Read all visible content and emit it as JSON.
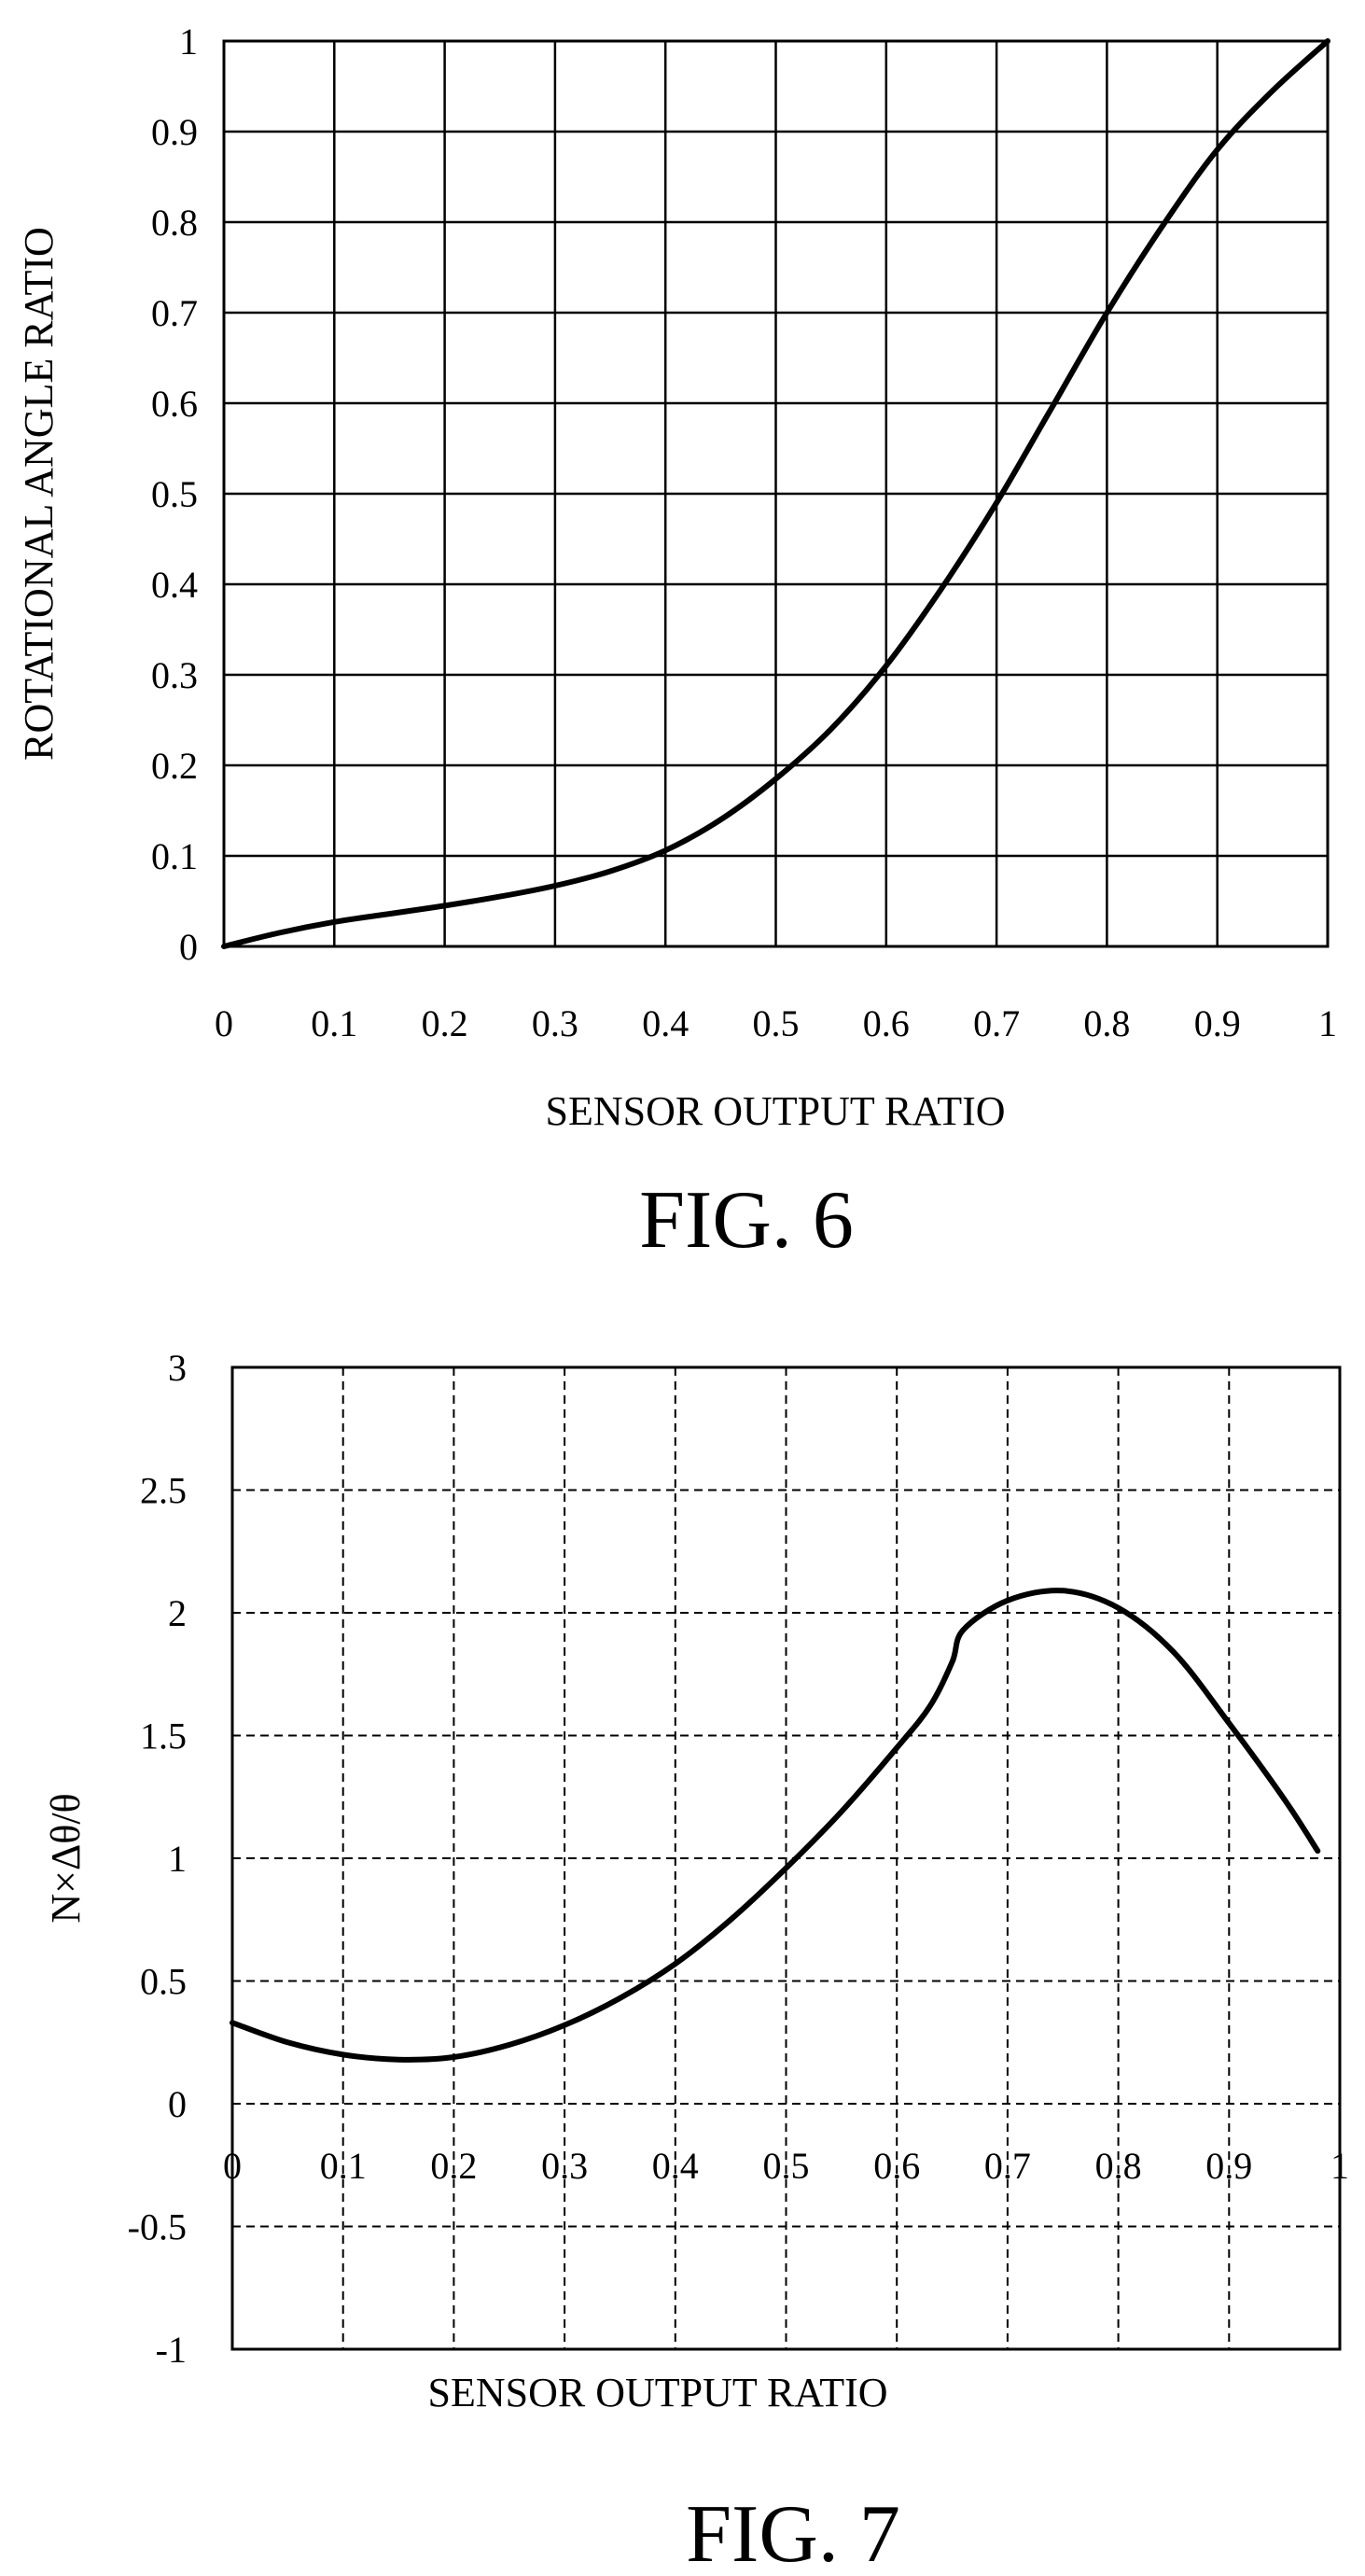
{
  "chart_data": [
    {
      "type": "line",
      "caption": "FIG. 6",
      "xlabel": "SENSOR OUTPUT RATIO",
      "ylabel": "ROTATIONAL ANGLE RATIO",
      "xlim": [
        0,
        1
      ],
      "ylim": [
        0,
        1
      ],
      "grid": true,
      "grid_style": "solid",
      "x_ticks": [
        "0",
        "0.1",
        "0.2",
        "0.3",
        "0.4",
        "0.5",
        "0.6",
        "0.7",
        "0.8",
        "0.9",
        "1"
      ],
      "y_ticks": [
        "0",
        "0.1",
        "0.2",
        "0.3",
        "0.4",
        "0.5",
        "0.6",
        "0.7",
        "0.8",
        "0.9",
        "1"
      ],
      "x": [
        0,
        0.05,
        0.1,
        0.15,
        0.2,
        0.25,
        0.3,
        0.35,
        0.4,
        0.45,
        0.5,
        0.55,
        0.6,
        0.65,
        0.7,
        0.75,
        0.8,
        0.85,
        0.9,
        0.95,
        1.0
      ],
      "y": [
        0,
        0.015,
        0.027,
        0.036,
        0.045,
        0.055,
        0.067,
        0.083,
        0.106,
        0.14,
        0.185,
        0.24,
        0.31,
        0.395,
        0.49,
        0.595,
        0.7,
        0.795,
        0.88,
        0.945,
        1.0
      ],
      "line_color": "#000000"
    },
    {
      "type": "line",
      "caption": "FIG. 7",
      "xlabel": "SENSOR OUTPUT RATIO",
      "ylabel": "N×Δθ/θ",
      "xlim": [
        0,
        1
      ],
      "ylim": [
        -1,
        3
      ],
      "grid": true,
      "grid_style": "dashed",
      "x_ticks": [
        "0",
        "0.1",
        "0.2",
        "0.3",
        "0.4",
        "0.5",
        "0.6",
        "0.7",
        "0.8",
        "0.9",
        "1"
      ],
      "y_ticks": [
        "-1",
        "-0.5",
        "0",
        "0.5",
        "1",
        "1.5",
        "2",
        "2.5",
        "3"
      ],
      "x": [
        0,
        0.05,
        0.1,
        0.15,
        0.2,
        0.25,
        0.3,
        0.35,
        0.4,
        0.45,
        0.5,
        0.55,
        0.6,
        0.63,
        0.65,
        0.66,
        0.7,
        0.75,
        0.8,
        0.85,
        0.9,
        0.95,
        0.98
      ],
      "y": [
        0.33,
        0.25,
        0.2,
        0.18,
        0.19,
        0.24,
        0.32,
        0.43,
        0.57,
        0.75,
        0.96,
        1.19,
        1.45,
        1.62,
        1.8,
        1.93,
        2.05,
        2.09,
        2.02,
        1.84,
        1.55,
        1.24,
        1.03
      ],
      "line_color": "#000000"
    }
  ]
}
